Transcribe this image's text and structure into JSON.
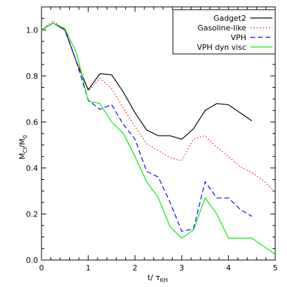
{
  "chart_data": {
    "type": "line",
    "xlabel": "t/  τ",
    "xlabel_sub": "KH",
    "ylabel": "M",
    "ylabel_sub1": "Cl",
    "ylabel_mid": "/M",
    "ylabel_sub2": "0",
    "xlim": [
      0,
      5
    ],
    "ylim": [
      0,
      1.1
    ],
    "xticks": [
      0,
      1,
      2,
      3,
      4,
      5
    ],
    "xtick_labels": [
      "0",
      "1",
      "2",
      "3",
      "4",
      "5"
    ],
    "yticks": [
      0.0,
      0.2,
      0.4,
      0.6,
      0.8,
      1.0
    ],
    "ytick_labels": [
      "0.0",
      "0.2",
      "0.4",
      "0.6",
      "0.8",
      "1.0"
    ],
    "legend_position": "top-right",
    "series": [
      {
        "name": "Gadget2",
        "color": "#000000",
        "style": "solid",
        "x": [
          0,
          0.25,
          0.5,
          0.75,
          1.0,
          1.25,
          1.5,
          1.75,
          2.0,
          2.25,
          2.5,
          2.75,
          3.0,
          3.25,
          3.5,
          3.75,
          4.0,
          4.25,
          4.5
        ],
        "y": [
          1.0,
          1.03,
          1.0,
          0.86,
          0.74,
          0.81,
          0.805,
          0.73,
          0.64,
          0.565,
          0.54,
          0.54,
          0.525,
          0.57,
          0.65,
          0.68,
          0.675,
          0.64,
          0.605
        ]
      },
      {
        "name": "Gasoline-like",
        "color": "#ff0000",
        "style": "dotted",
        "x": [
          0,
          0.25,
          0.5,
          0.75,
          1.0,
          1.25,
          1.5,
          1.75,
          2.0,
          2.25,
          2.5,
          2.75,
          3.0,
          3.25,
          3.5,
          3.75,
          4.0,
          4.25,
          4.5,
          4.75,
          5.0
        ],
        "y": [
          1.0,
          1.04,
          1.0,
          0.86,
          0.735,
          0.79,
          0.745,
          0.66,
          0.58,
          0.505,
          0.475,
          0.445,
          0.43,
          0.525,
          0.54,
          0.49,
          0.45,
          0.405,
          0.38,
          0.345,
          0.295
        ]
      },
      {
        "name": "VPH",
        "color": "#0000ff",
        "style": "dashed",
        "x": [
          0,
          0.25,
          0.5,
          0.75,
          1.0,
          1.25,
          1.5,
          1.75,
          2.0,
          2.25,
          2.5,
          2.75,
          3.0,
          3.25,
          3.5,
          3.75,
          4.0,
          4.25,
          4.5
        ],
        "y": [
          1.0,
          1.03,
          1.005,
          0.86,
          0.695,
          0.655,
          0.675,
          0.59,
          0.525,
          0.385,
          0.36,
          0.25,
          0.125,
          0.135,
          0.34,
          0.27,
          0.27,
          0.22,
          0.19
        ]
      },
      {
        "name": "VPH dyn visc",
        "color": "#00ee00",
        "style": "solid",
        "x": [
          0,
          0.25,
          0.5,
          0.75,
          1.0,
          1.25,
          1.5,
          1.75,
          2.0,
          2.25,
          2.5,
          2.75,
          3.0,
          3.25,
          3.5,
          3.75,
          4.0,
          4.25,
          4.5,
          4.75,
          5.0
        ],
        "y": [
          1.0,
          1.03,
          1.005,
          0.9,
          0.69,
          0.68,
          0.6,
          0.55,
          0.45,
          0.34,
          0.27,
          0.145,
          0.095,
          0.13,
          0.27,
          0.2,
          0.095,
          0.095,
          0.095,
          0.06,
          0.025
        ]
      }
    ]
  }
}
